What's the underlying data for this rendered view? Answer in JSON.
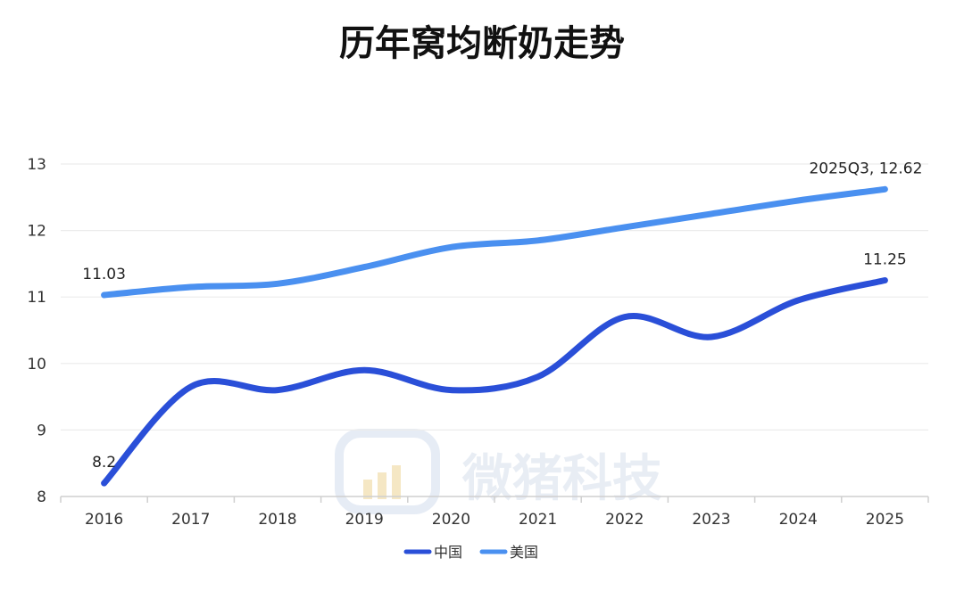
{
  "chart_data": {
    "type": "line",
    "title": "历年窝均断奶走势",
    "categories": [
      "2016",
      "2017",
      "2018",
      "2019",
      "2020",
      "2021",
      "2022",
      "2023",
      "2024",
      "2025"
    ],
    "ylim": [
      8,
      13
    ],
    "yticks": [
      8,
      9,
      10,
      11,
      12,
      13
    ],
    "grid": true,
    "legend_position": "bottom-center",
    "series": [
      {
        "name": "中国",
        "color": "#2a4fd8",
        "values": [
          8.2,
          9.65,
          9.6,
          9.9,
          9.6,
          9.8,
          10.7,
          10.4,
          10.95,
          11.25
        ]
      },
      {
        "name": "美国",
        "color": "#4a90f0",
        "values": [
          11.03,
          11.15,
          11.2,
          11.45,
          11.75,
          11.85,
          12.05,
          12.25,
          12.45,
          12.62
        ]
      }
    ],
    "annotations": [
      {
        "series": 0,
        "index": 0,
        "text": "8.2"
      },
      {
        "series": 0,
        "index": 9,
        "text": "11.25"
      },
      {
        "series": 1,
        "index": 0,
        "text": "11.03"
      },
      {
        "series": 1,
        "index": 9,
        "text": "2025Q3, 12.62"
      }
    ]
  },
  "watermark": {
    "text": "微猪科技",
    "icon": "pig-logo-icon"
  }
}
